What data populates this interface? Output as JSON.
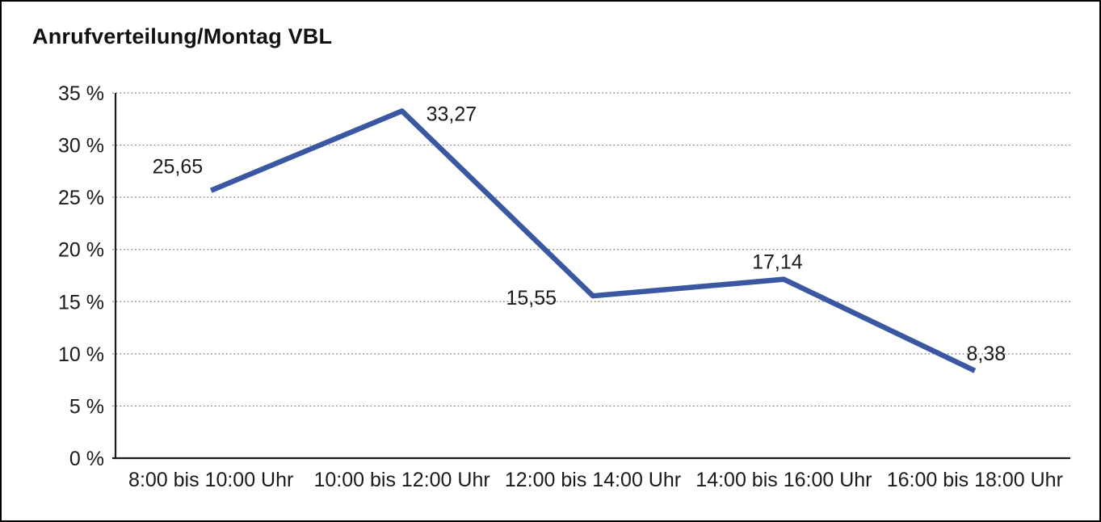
{
  "title": "Anrufverteilung/Montag VBL",
  "chart_data": {
    "type": "line",
    "title": "Anrufverteilung/Montag VBL",
    "categories": [
      "8:00 bis 10:00 Uhr",
      "10:00 bis 12:00 Uhr",
      "12:00 bis 14:00 Uhr",
      "14:00 bis 16:00 Uhr",
      "16:00 bis 18:00 Uhr"
    ],
    "values": [
      25.65,
      33.27,
      15.55,
      17.14,
      8.38
    ],
    "data_labels": [
      "25,65",
      "33,27",
      "15,55",
      "17,14",
      "8,38"
    ],
    "y_tick_labels": [
      "0 %",
      "5 %",
      "10 %",
      "15 %",
      "20 %",
      "25 %",
      "30 %",
      "35 %"
    ],
    "y_ticks": [
      0,
      5,
      10,
      15,
      20,
      25,
      30,
      35
    ],
    "ylim": [
      0,
      35
    ],
    "xlabel": "",
    "ylabel": "",
    "legend": "none",
    "grid": "horizontal-dotted",
    "line_color": "#3a57a2",
    "axis_color": "#1a1a1a",
    "gridline_color": "#707070",
    "text_color": "#1a1a1a"
  }
}
